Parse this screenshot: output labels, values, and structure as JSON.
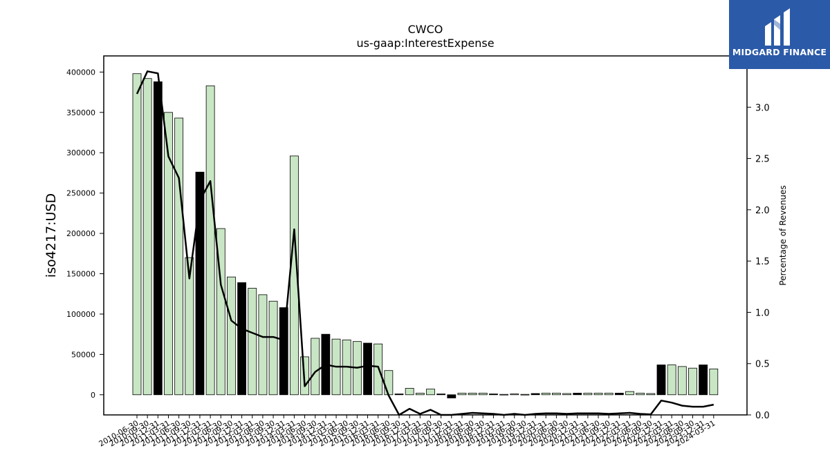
{
  "logo": {
    "text": "MIDGARD FINANCE"
  },
  "chart_data": {
    "type": "bar",
    "title": "CWCO",
    "subtitle": "us-gaap:InterestExpense",
    "ylabel": "iso4217:USD",
    "y2label": "Percentage of Revenues",
    "ylim": [
      -25000,
      420000
    ],
    "y2lim": [
      0.0,
      3.5
    ],
    "yticks": [
      0,
      50000,
      100000,
      150000,
      200000,
      250000,
      300000,
      350000,
      400000
    ],
    "y2ticks": [
      0.0,
      0.5,
      1.0,
      1.5,
      2.0,
      2.5,
      3.0
    ],
    "colors": {
      "bar": "#c8e6c4",
      "highlight": "#000000",
      "line": "#000000"
    },
    "categories": [
      "2010-06-30",
      "2010-09-30",
      "2010-12-31",
      "2011-03-31",
      "2011-06-30",
      "2011-09-30",
      "2011-12-31",
      "2012-03-31",
      "2012-06-30",
      "2012-09-30",
      "2012-12-31",
      "2013-03-31",
      "2013-06-30",
      "2013-09-30",
      "2013-12-31",
      "2014-03-31",
      "2014-06-30",
      "2014-09-30",
      "2014-12-31",
      "2015-03-31",
      "2015-06-30",
      "2015-09-30",
      "2015-12-31",
      "2016-03-31",
      "2016-06-30",
      "2016-09-30",
      "2016-12-31",
      "2017-03-31",
      "2017-06-30",
      "2017-09-30",
      "2017-12-31",
      "2018-03-31",
      "2018-06-30",
      "2018-09-30",
      "2018-12-31",
      "2019-03-31",
      "2019-06-30",
      "2019-09-30",
      "2019-12-31",
      "2020-03-31",
      "2020-06-30",
      "2020-09-30",
      "2020-12-31",
      "2021-03-31",
      "2021-06-30",
      "2021-09-30",
      "2021-12-31",
      "2022-03-31",
      "2022-06-30",
      "2022-09-30",
      "2022-12-31",
      "2023-03-31",
      "2023-06-30",
      "2023-09-30",
      "2023-12-31",
      "2024-03-31"
    ],
    "values": [
      398000,
      392000,
      388000,
      350000,
      343000,
      170000,
      276000,
      383000,
      206000,
      146000,
      139000,
      132000,
      124000,
      116000,
      108000,
      296000,
      47000,
      70000,
      75000,
      69000,
      68000,
      66000,
      64000,
      63000,
      30000,
      1000,
      8000,
      2000,
      7000,
      1000,
      -4000,
      2000,
      2000,
      2000,
      1000,
      500,
      1000,
      500,
      1500,
      2000,
      2000,
      1500,
      2000,
      2000,
      2000,
      2000,
      2000,
      4000,
      2000,
      1500,
      37000,
      37000,
      35000,
      33000,
      37000,
      32000
    ],
    "highlight": [
      false,
      false,
      true,
      false,
      false,
      false,
      true,
      false,
      false,
      false,
      true,
      false,
      false,
      false,
      true,
      false,
      false,
      false,
      true,
      false,
      false,
      false,
      true,
      false,
      false,
      true,
      false,
      false,
      false,
      true,
      true,
      false,
      false,
      false,
      true,
      false,
      false,
      false,
      true,
      false,
      false,
      false,
      true,
      false,
      false,
      false,
      true,
      false,
      false,
      false,
      true,
      false,
      false,
      false,
      true,
      false
    ],
    "line_values": [
      3.13,
      3.35,
      3.33,
      2.52,
      2.31,
      1.33,
      2.09,
      2.28,
      1.27,
      0.92,
      0.84,
      0.8,
      0.76,
      0.76,
      0.73,
      1.81,
      0.28,
      0.42,
      0.49,
      0.47,
      0.47,
      0.46,
      0.48,
      0.47,
      0.19,
      0.0,
      0.06,
      0.01,
      0.05,
      0.0,
      -0.02,
      0.01,
      0.02,
      0.015,
      0.01,
      0.0,
      0.01,
      0.0,
      0.01,
      0.015,
      0.015,
      0.01,
      0.015,
      0.015,
      0.015,
      0.01,
      0.015,
      0.02,
      0.01,
      0.005,
      0.14,
      0.12,
      0.09,
      0.08,
      0.08,
      0.1
    ]
  }
}
